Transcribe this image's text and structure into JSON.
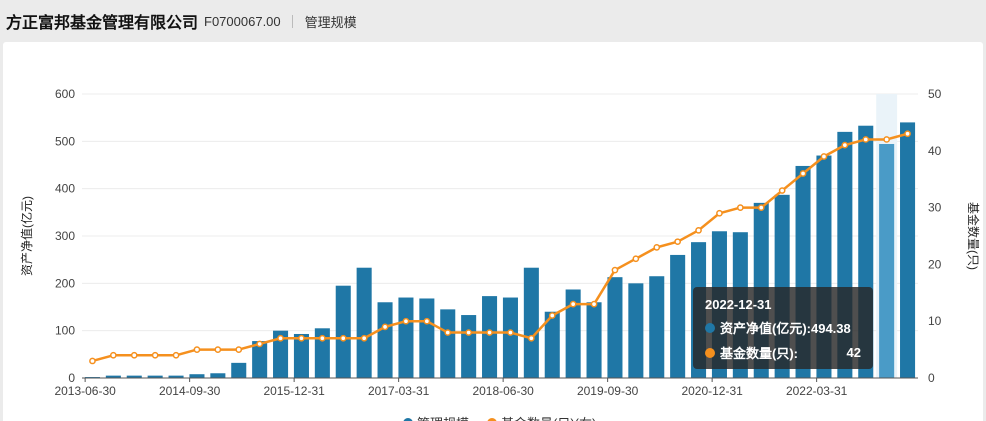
{
  "header": {
    "company": "方正富邦基金管理有限公司",
    "code": "F0700067.00",
    "section": "管理规模"
  },
  "colors": {
    "bar": "#1f77a6",
    "bar_highlight": "#4a9bc7",
    "line": "#f5901e"
  },
  "tooltip": {
    "date": "2022-12-31",
    "row1_label": "资产净值(亿元):494.38",
    "row1_value": "",
    "row2_label": "基金数量(只):",
    "row2_value": "42"
  },
  "legend": {
    "bar_label": "管理规模",
    "line_label": "基金数量(只)(右)"
  },
  "chart_data": {
    "type": "bar",
    "ylabel": "资产净值(亿元)",
    "y2label": "基金数量(只)",
    "ylim": [
      0,
      600
    ],
    "y2lim": [
      0,
      50
    ],
    "yticks": [
      "0",
      "100",
      "200",
      "300",
      "400",
      "500",
      "600"
    ],
    "y2ticks": [
      "0",
      "10",
      "20",
      "30",
      "40",
      "50"
    ],
    "xtick_labels": [
      "2013-06-30",
      "2014-09-30",
      "2015-12-31",
      "2017-03-31",
      "2018-06-30",
      "2019-09-30",
      "2020-12-31",
      "2022-03-31"
    ],
    "xtick_index": [
      0,
      5,
      10,
      15,
      20,
      25,
      30,
      35
    ],
    "highlight_index": 38,
    "categories": [
      "2013-06-30",
      "2013-09-30",
      "2013-12-31",
      "2014-03-31",
      "2014-06-30",
      "2014-09-30",
      "2014-12-31",
      "2015-03-31",
      "2015-06-30",
      "2015-09-30",
      "2015-12-31",
      "2016-03-31",
      "2016-06-30",
      "2016-09-30",
      "2016-12-31",
      "2017-03-31",
      "2017-06-30",
      "2017-09-30",
      "2017-12-31",
      "2018-03-31",
      "2018-06-30",
      "2018-09-30",
      "2018-12-31",
      "2019-03-31",
      "2019-06-30",
      "2019-09-30",
      "2019-12-31",
      "2020-03-31",
      "2020-06-30",
      "2020-09-30",
      "2020-12-31",
      "2021-03-31",
      "2021-06-30",
      "2021-09-30",
      "2021-12-31",
      "2022-03-31",
      "2022-06-30",
      "2022-09-30",
      "2022-12-31",
      "2023-03-31"
    ],
    "series": [
      {
        "name": "管理规模",
        "type": "bar",
        "axis": "left",
        "values": [
          2,
          5,
          5,
          5,
          5,
          8,
          10,
          32,
          78,
          100,
          93,
          105,
          195,
          233,
          160,
          170,
          168,
          145,
          133,
          173,
          170,
          233,
          140,
          187,
          160,
          213,
          200,
          215,
          260,
          287,
          310,
          308,
          370,
          387,
          448,
          470,
          520,
          533,
          494.38,
          540
        ]
      },
      {
        "name": "基金数量(只)(右)",
        "type": "line",
        "axis": "right",
        "values": [
          3,
          4,
          4,
          4,
          4,
          5,
          5,
          5,
          6,
          7,
          7,
          7,
          7,
          7,
          9,
          10,
          10,
          8,
          8,
          8,
          8,
          7,
          11,
          13,
          13,
          19,
          21,
          23,
          24,
          26,
          29,
          30,
          30,
          33,
          36,
          39,
          41,
          42,
          42,
          43
        ]
      }
    ]
  }
}
